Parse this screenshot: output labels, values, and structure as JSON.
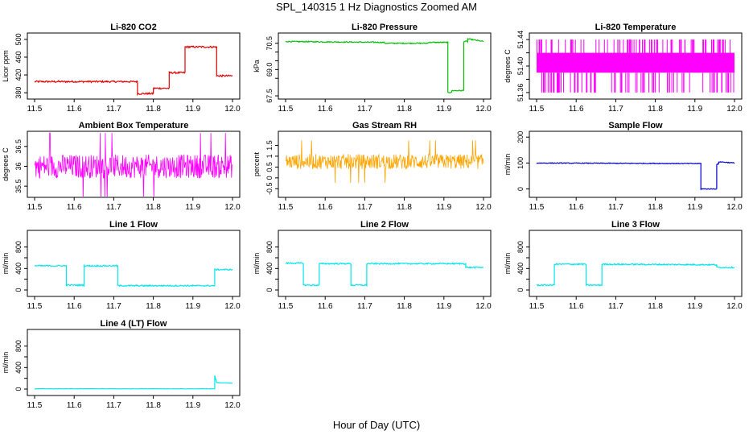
{
  "figure": {
    "title": "SPL_140315  1 Hz Diagnostics Zoomed AM",
    "xlabel": "Hour of Day (UTC)"
  },
  "chart_data": [
    {
      "type": "line",
      "title": "Li-820 CO2",
      "ylabel": "Licor ppm",
      "color": "#e00000",
      "xlim": [
        11.5,
        12.0
      ],
      "ylim": [
        373,
        507
      ],
      "yticks": [
        380,
        420,
        460,
        500
      ],
      "xticks": [
        11.5,
        11.6,
        11.7,
        11.8,
        11.9,
        12.0
      ],
      "style": "step",
      "noise": 2,
      "series": [
        {
          "x": [
            11.5,
            11.76,
            11.76,
            11.8,
            11.8,
            11.84,
            11.84,
            11.88,
            11.88,
            11.96,
            11.96,
            11.97,
            12.0
          ],
          "values": [
            405,
            405,
            378,
            378,
            390,
            390,
            425,
            425,
            483,
            483,
            418,
            418,
            418
          ]
        }
      ]
    },
    {
      "type": "line",
      "title": "Li-820 Pressure",
      "ylabel": "kPa",
      "color": "#00c000",
      "xlim": [
        11.5,
        12.0
      ],
      "ylim": [
        67.5,
        70.9
      ],
      "yticks": [
        67.5,
        68.5,
        69.0,
        69.5,
        70.0,
        70.5
      ],
      "ytick_labels": [
        "67.5",
        "",
        "69.0",
        "",
        "",
        "70.5"
      ],
      "xticks": [
        11.5,
        11.6,
        11.7,
        11.8,
        11.9,
        12.0
      ],
      "style": "step",
      "noise": 0.03,
      "series": [
        {
          "x": [
            11.5,
            11.75,
            11.75,
            11.86,
            11.86,
            11.91,
            11.91,
            11.92,
            11.92,
            11.95,
            11.95,
            11.96,
            11.96,
            12.0
          ],
          "values": [
            70.6,
            70.55,
            70.5,
            70.5,
            70.55,
            70.55,
            67.7,
            67.7,
            67.8,
            67.8,
            70.6,
            70.6,
            70.75,
            70.6
          ]
        }
      ]
    },
    {
      "type": "line",
      "title": "Li-820 Temperature",
      "ylabel": "degrees C",
      "color": "#ff00ff",
      "xlim": [
        11.5,
        12.0
      ],
      "ylim": [
        51.355,
        51.445
      ],
      "yticks": [
        51.36,
        51.38,
        51.4,
        51.42,
        51.44
      ],
      "ytick_labels": [
        "51.36",
        "",
        "51.40",
        "",
        "51.44"
      ],
      "xticks": [
        11.5,
        11.6,
        11.7,
        11.8,
        11.9,
        12.0
      ],
      "style": "dense",
      "band": [
        51.39,
        51.42
      ],
      "spikes": [
        51.36,
        51.44
      ],
      "series": [
        {
          "x": [
            11.5,
            12.0
          ],
          "values": [
            51.405,
            51.405
          ]
        }
      ]
    },
    {
      "type": "line",
      "title": "Ambient Box Temperature",
      "ylabel": "degrees C",
      "color": "#ff00ff",
      "xlim": [
        11.5,
        12.0
      ],
      "ylim": [
        35.3,
        36.8
      ],
      "yticks": [
        35.5,
        36.0,
        36.5
      ],
      "xticks": [
        11.5,
        11.6,
        11.7,
        11.8,
        11.9,
        12.0
      ],
      "style": "noise",
      "noise": 0.3,
      "series": [
        {
          "x": [
            11.5,
            12.0
          ],
          "values": [
            36.0,
            36.0
          ]
        }
      ]
    },
    {
      "type": "line",
      "title": "Gas Stream RH",
      "ylabel": "percent",
      "color": "#ffa500",
      "xlim": [
        11.5,
        12.0
      ],
      "ylim": [
        -0.75,
        2.0
      ],
      "yticks": [
        -0.5,
        0.0,
        0.5,
        1.0,
        1.5
      ],
      "xticks": [
        11.5,
        11.6,
        11.7,
        11.8,
        11.9,
        12.0
      ],
      "style": "noise",
      "noise": 0.35,
      "series": [
        {
          "x": [
            11.5,
            12.0
          ],
          "values": [
            0.75,
            0.75
          ]
        }
      ]
    },
    {
      "type": "line",
      "title": "Sample Flow",
      "ylabel": "ml/min",
      "color": "#0000cc",
      "xlim": [
        11.5,
        12.0
      ],
      "ylim": [
        -20,
        210
      ],
      "yticks": [
        0,
        100,
        200
      ],
      "xticks": [
        11.5,
        11.6,
        11.7,
        11.8,
        11.9,
        12.0
      ],
      "style": "step",
      "noise": 1.5,
      "series": [
        {
          "x": [
            11.5,
            11.915,
            11.915,
            11.955,
            11.955,
            11.96,
            11.96,
            12.0
          ],
          "values": [
            100,
            98,
            0,
            0,
            95,
            95,
            105,
            100
          ]
        }
      ]
    },
    {
      "type": "line",
      "title": "Line 1 Flow",
      "ylabel": "ml/min",
      "color": "#00e5ee",
      "xlim": [
        11.5,
        12.0
      ],
      "ylim": [
        -60,
        1050
      ],
      "yticks": [
        0,
        200,
        400,
        600,
        800
      ],
      "ytick_labels": [
        "0",
        "",
        "400",
        "",
        "800"
      ],
      "xticks": [
        11.5,
        11.6,
        11.7,
        11.8,
        11.9,
        12.0
      ],
      "style": "step",
      "noise": 12,
      "series": [
        {
          "x": [
            11.5,
            11.58,
            11.58,
            11.625,
            11.625,
            11.71,
            11.71,
            11.955,
            11.955,
            12.0
          ],
          "values": [
            450,
            450,
            90,
            90,
            450,
            450,
            80,
            80,
            380,
            380
          ]
        }
      ]
    },
    {
      "type": "line",
      "title": "Line 2 Flow",
      "ylabel": "ml/min",
      "color": "#00e5ee",
      "xlim": [
        11.5,
        12.0
      ],
      "ylim": [
        -60,
        1050
      ],
      "yticks": [
        0,
        200,
        400,
        600,
        800
      ],
      "ytick_labels": [
        "0",
        "",
        "400",
        "",
        "800"
      ],
      "xticks": [
        11.5,
        11.6,
        11.7,
        11.8,
        11.9,
        12.0
      ],
      "style": "step",
      "noise": 12,
      "series": [
        {
          "x": [
            11.5,
            11.545,
            11.545,
            11.585,
            11.585,
            11.665,
            11.665,
            11.705,
            11.705,
            11.955,
            11.955,
            12.0
          ],
          "values": [
            500,
            500,
            90,
            90,
            490,
            490,
            90,
            90,
            490,
            490,
            420,
            420
          ]
        }
      ]
    },
    {
      "type": "line",
      "title": "Line 3 Flow",
      "ylabel": "ml/min",
      "color": "#00e5ee",
      "xlim": [
        11.5,
        12.0
      ],
      "ylim": [
        -60,
        1050
      ],
      "yticks": [
        0,
        200,
        400,
        600,
        800
      ],
      "ytick_labels": [
        "0",
        "",
        "400",
        "",
        "800"
      ],
      "xticks": [
        11.5,
        11.6,
        11.7,
        11.8,
        11.9,
        12.0
      ],
      "style": "step",
      "noise": 12,
      "series": [
        {
          "x": [
            11.5,
            11.545,
            11.545,
            11.625,
            11.625,
            11.665,
            11.665,
            11.955,
            11.955,
            12.0
          ],
          "values": [
            90,
            90,
            480,
            480,
            90,
            90,
            480,
            470,
            420,
            420
          ]
        }
      ]
    },
    {
      "type": "line",
      "title": "Line 4 (LT) Flow",
      "ylabel": "ml/min",
      "color": "#00e5ee",
      "xlim": [
        11.5,
        12.0
      ],
      "ylim": [
        -60,
        1050
      ],
      "yticks": [
        0,
        200,
        400,
        600,
        800
      ],
      "ytick_labels": [
        "0",
        "",
        "400",
        "",
        "800"
      ],
      "xticks": [
        11.5,
        11.6,
        11.7,
        11.8,
        11.9,
        12.0
      ],
      "style": "step",
      "noise": 3,
      "series": [
        {
          "x": [
            11.5,
            11.955,
            11.955,
            11.96,
            11.96,
            12.0
          ],
          "values": [
            5,
            5,
            250,
            120,
            120,
            110
          ]
        }
      ]
    }
  ]
}
